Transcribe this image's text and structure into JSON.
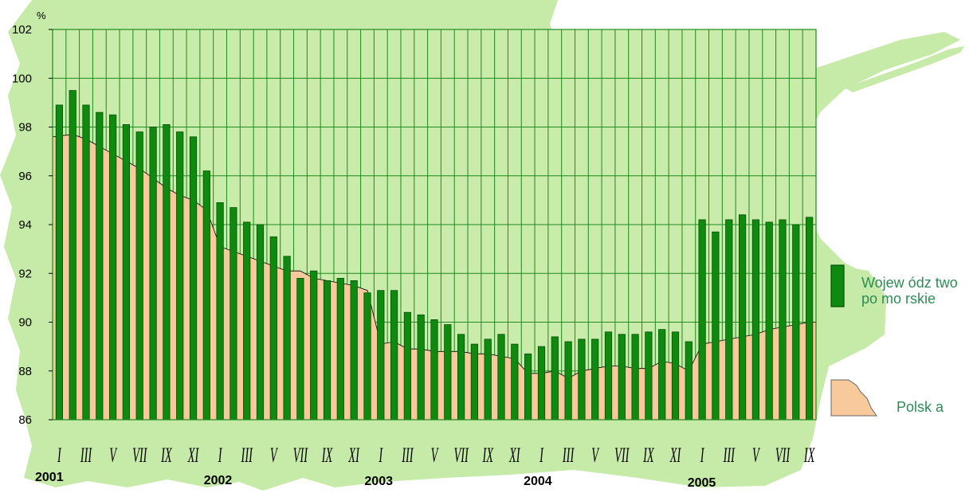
{
  "chart_data": {
    "type": "bar",
    "unit_label": "%",
    "ylim": [
      86,
      102
    ],
    "y_ticks": [
      "86",
      "88",
      "90",
      "92",
      "94",
      "96",
      "98",
      "100",
      "102"
    ],
    "month_labels": [
      "I",
      "III",
      "V",
      "VII",
      "IX",
      "XI",
      "I",
      "III",
      "V",
      "VII",
      "IX",
      "XI",
      "I",
      "III",
      "V",
      "VII",
      "IX",
      "XI",
      "I",
      "III",
      "V",
      "VII",
      "IX",
      "XI",
      "I",
      "III",
      "V",
      "VII",
      "IX"
    ],
    "year_labels": [
      "2001",
      "2002",
      "2003",
      "2004",
      "2005"
    ],
    "months_count": 57,
    "grid": true,
    "colors": {
      "bars": "#0e8a0e",
      "bar_edge": "#064d06",
      "area": "#f8c99a",
      "plot_bg": "#c9ecab",
      "map_bg": "#c6eaa8",
      "grid": "#1f8a1f",
      "legend_text": "#2e8b57"
    },
    "series": [
      {
        "name": "Województwo pomorskie",
        "type": "bar",
        "values": [
          98.9,
          99.5,
          98.9,
          98.6,
          98.5,
          98.1,
          97.8,
          98.0,
          98.1,
          97.8,
          97.6,
          96.2,
          94.9,
          94.7,
          94.1,
          94.0,
          93.5,
          92.7,
          91.8,
          92.1,
          91.7,
          91.8,
          91.7,
          91.2,
          91.3,
          91.3,
          90.4,
          90.3,
          90.1,
          89.9,
          89.5,
          89.1,
          89.3,
          89.5,
          89.1,
          88.7,
          89.0,
          89.4,
          89.2,
          89.3,
          89.3,
          89.6,
          89.5,
          89.5,
          89.6,
          89.7,
          89.6,
          89.2,
          94.2,
          93.7,
          94.2,
          94.4,
          94.2,
          94.1,
          94.2,
          94.0,
          94.3
        ]
      },
      {
        "name": "Polska",
        "type": "area",
        "values": [
          97.6,
          97.7,
          97.5,
          97.2,
          96.9,
          96.6,
          96.3,
          95.9,
          95.5,
          95.2,
          95.0,
          94.6,
          93.1,
          92.9,
          92.7,
          92.5,
          92.3,
          92.1,
          92.1,
          91.8,
          91.7,
          91.6,
          91.5,
          91.3,
          89.1,
          89.2,
          88.9,
          88.9,
          88.8,
          88.8,
          88.8,
          88.7,
          88.7,
          88.6,
          88.5,
          87.9,
          87.9,
          88.0,
          87.7,
          88.0,
          88.1,
          88.2,
          88.2,
          88.1,
          88.1,
          88.4,
          88.3,
          88.0,
          89.1,
          89.2,
          89.3,
          89.4,
          89.5,
          89.7,
          89.8,
          89.9,
          90.0
        ]
      }
    ],
    "legend": [
      {
        "label_line1": "Wojew ódz two",
        "label_line2": "po mo rskie"
      },
      {
        "label": "Polsk a"
      }
    ],
    "legend_placement": "right"
  }
}
